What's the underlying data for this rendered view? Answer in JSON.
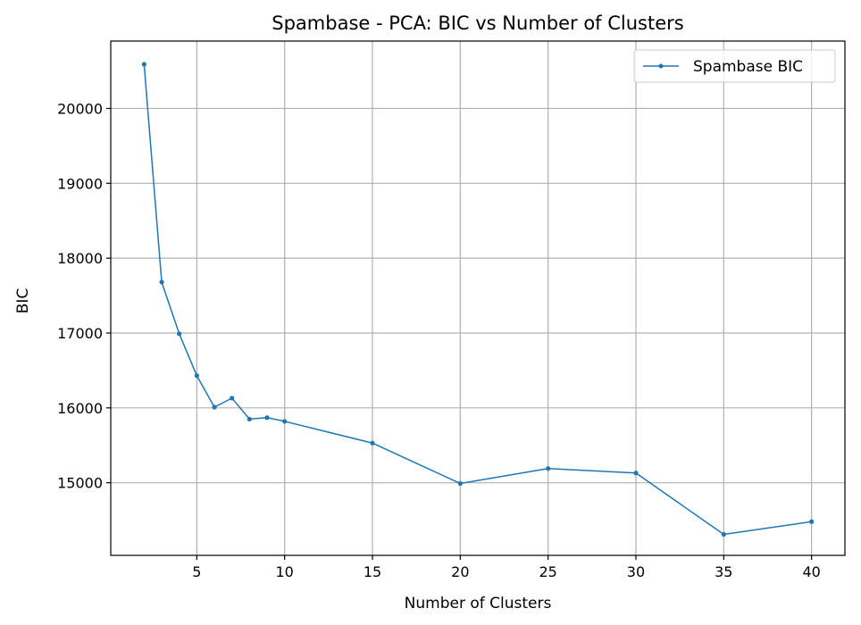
{
  "chart_data": {
    "type": "line",
    "title": "Spambase - PCA: BIC vs Number of Clusters",
    "xlabel": "Number of Clusters",
    "ylabel": "BIC",
    "xlim": [
      0.1,
      41.9
    ],
    "ylim": [
      14030,
      20900
    ],
    "xticks": [
      5,
      10,
      15,
      20,
      25,
      30,
      35,
      40
    ],
    "yticks": [
      15000,
      16000,
      17000,
      18000,
      19000,
      20000
    ],
    "grid": true,
    "legend_position": "top-right",
    "series": [
      {
        "name": "Spambase BIC",
        "color": "#1f77b4",
        "marker": "dot",
        "x": [
          2,
          3,
          4,
          5,
          6,
          7,
          8,
          9,
          10,
          15,
          20,
          25,
          30,
          35,
          40
        ],
        "y": [
          20590,
          17680,
          16990,
          16430,
          16010,
          16130,
          15850,
          15870,
          15820,
          15530,
          14990,
          15190,
          15130,
          14310,
          14480
        ]
      }
    ]
  },
  "colors": {
    "grid": "#b0b0b0",
    "axes": "#000000",
    "background": "#ffffff"
  }
}
